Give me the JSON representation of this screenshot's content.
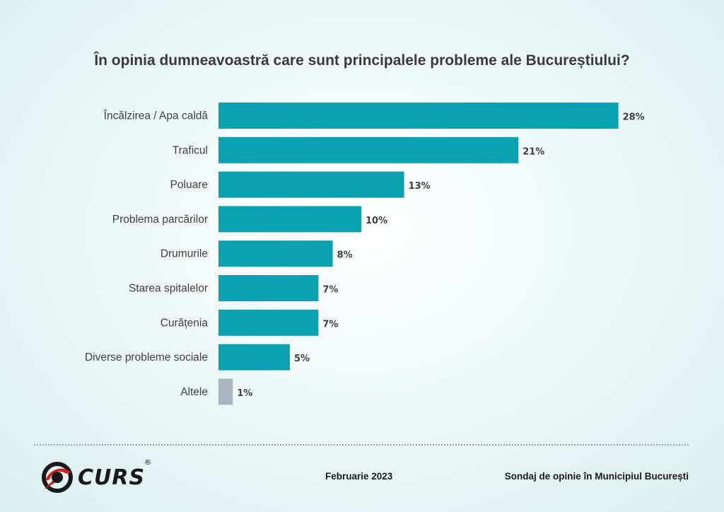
{
  "chart_data": {
    "type": "bar",
    "orientation": "horizontal",
    "title": "În opinia dumneavoastră care sunt principalele probleme ale Bucureștiului?",
    "categories": [
      "Încălzirea / Apa caldă",
      "Traficul",
      "Poluare",
      "Problema parcărilor",
      "Drumurile",
      "Starea spitalelor",
      "Curățenia",
      "Diverse probleme sociale",
      "Altele"
    ],
    "values": [
      28,
      21,
      13,
      10,
      8,
      7,
      7,
      5,
      1
    ],
    "value_labels": [
      "28%",
      "21%",
      "13%",
      "10%",
      "8%",
      "7%",
      "7%",
      "5%",
      "1%"
    ],
    "unit": "%",
    "colors": {
      "bar": "#0aa1b0",
      "bar_other": "#a9b4bf"
    },
    "grid": false,
    "legend": "none"
  },
  "footer": {
    "logo_text": "CURS",
    "logo_reg": "®",
    "date": "Februarie 2023",
    "survey": "Sondaj de opinie în Municipiul București"
  }
}
